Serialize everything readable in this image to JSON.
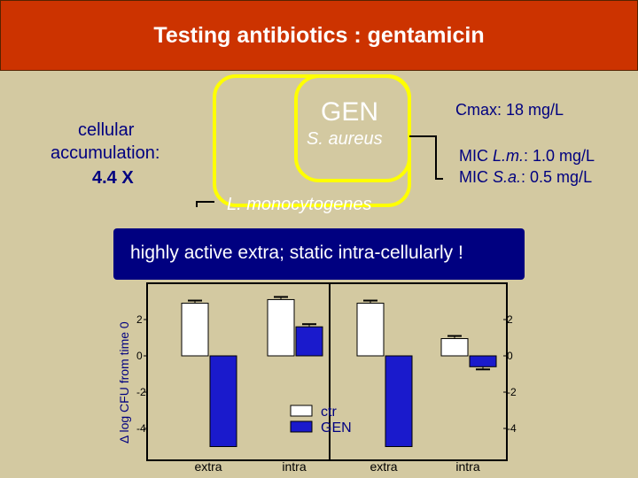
{
  "slide": {
    "title": "Testing antibiotics : gentamicin",
    "drug_label": "GEN",
    "organism_saureus": "S. aureus",
    "organism_lmono": "L. monocytogenes",
    "cellular_line1": "cellular",
    "cellular_line2": "accumulation:",
    "cellular_value": "4.4 X",
    "cmax": "Cmax: 18 mg/L",
    "mic_lm_prefix": "MIC ",
    "mic_lm_org": "L.m.",
    "mic_lm_value": ": 1.0 mg/L",
    "mic_sa_prefix": "MIC ",
    "mic_sa_org": "S.a.",
    "mic_sa_value": ": 0.5 mg/L",
    "banner": "highly active extra; static intra-cellularly !"
  },
  "colors": {
    "title_bg": "#cc3300",
    "slide_bg": "#d3c9a1",
    "ctr": "#ffffff",
    "gen": "#1a1acc",
    "frame_yellow": "#ffff00",
    "banner_bg": "#000080"
  },
  "chart_data": {
    "type": "bar",
    "ylabel": "Δ log CFU from time 0",
    "ylim": [
      -5,
      3.5
    ],
    "yticks": [
      "2",
      "0",
      "-2",
      "-4"
    ],
    "categories": [
      "extra",
      "intra",
      "extra",
      "intra"
    ],
    "series": [
      {
        "name": "ctr",
        "values": [
          2.9,
          3.1,
          2.9,
          0.95
        ]
      },
      {
        "name": "GEN",
        "values": [
          -5.0,
          1.6,
          -5.0,
          -0.6
        ]
      }
    ],
    "legend": [
      "ctr",
      "GEN"
    ],
    "legend_position": "bottom-center"
  }
}
